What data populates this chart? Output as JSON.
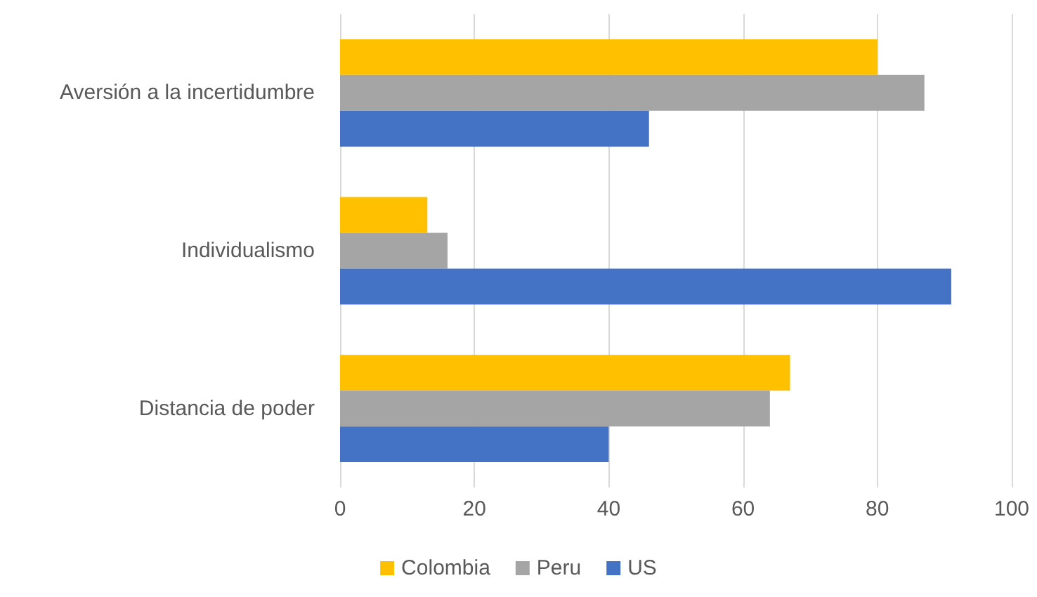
{
  "chart_data": {
    "type": "bar",
    "orientation": "horizontal",
    "categories": [
      "Aversión a la incertidumbre",
      "Individualismo",
      "Distancia de poder"
    ],
    "series": [
      {
        "name": "Colombia",
        "color": "#ffc000",
        "values": [
          80,
          13,
          67
        ]
      },
      {
        "name": "Peru",
        "color": "#a5a5a5",
        "values": [
          87,
          16,
          64
        ]
      },
      {
        "name": "US",
        "color": "#4472c4",
        "values": [
          46,
          91,
          40
        ]
      }
    ],
    "xlim": [
      0,
      100
    ],
    "xticks": [
      0,
      20,
      40,
      60,
      80,
      100
    ],
    "grid": "x",
    "legend": "bottom"
  }
}
